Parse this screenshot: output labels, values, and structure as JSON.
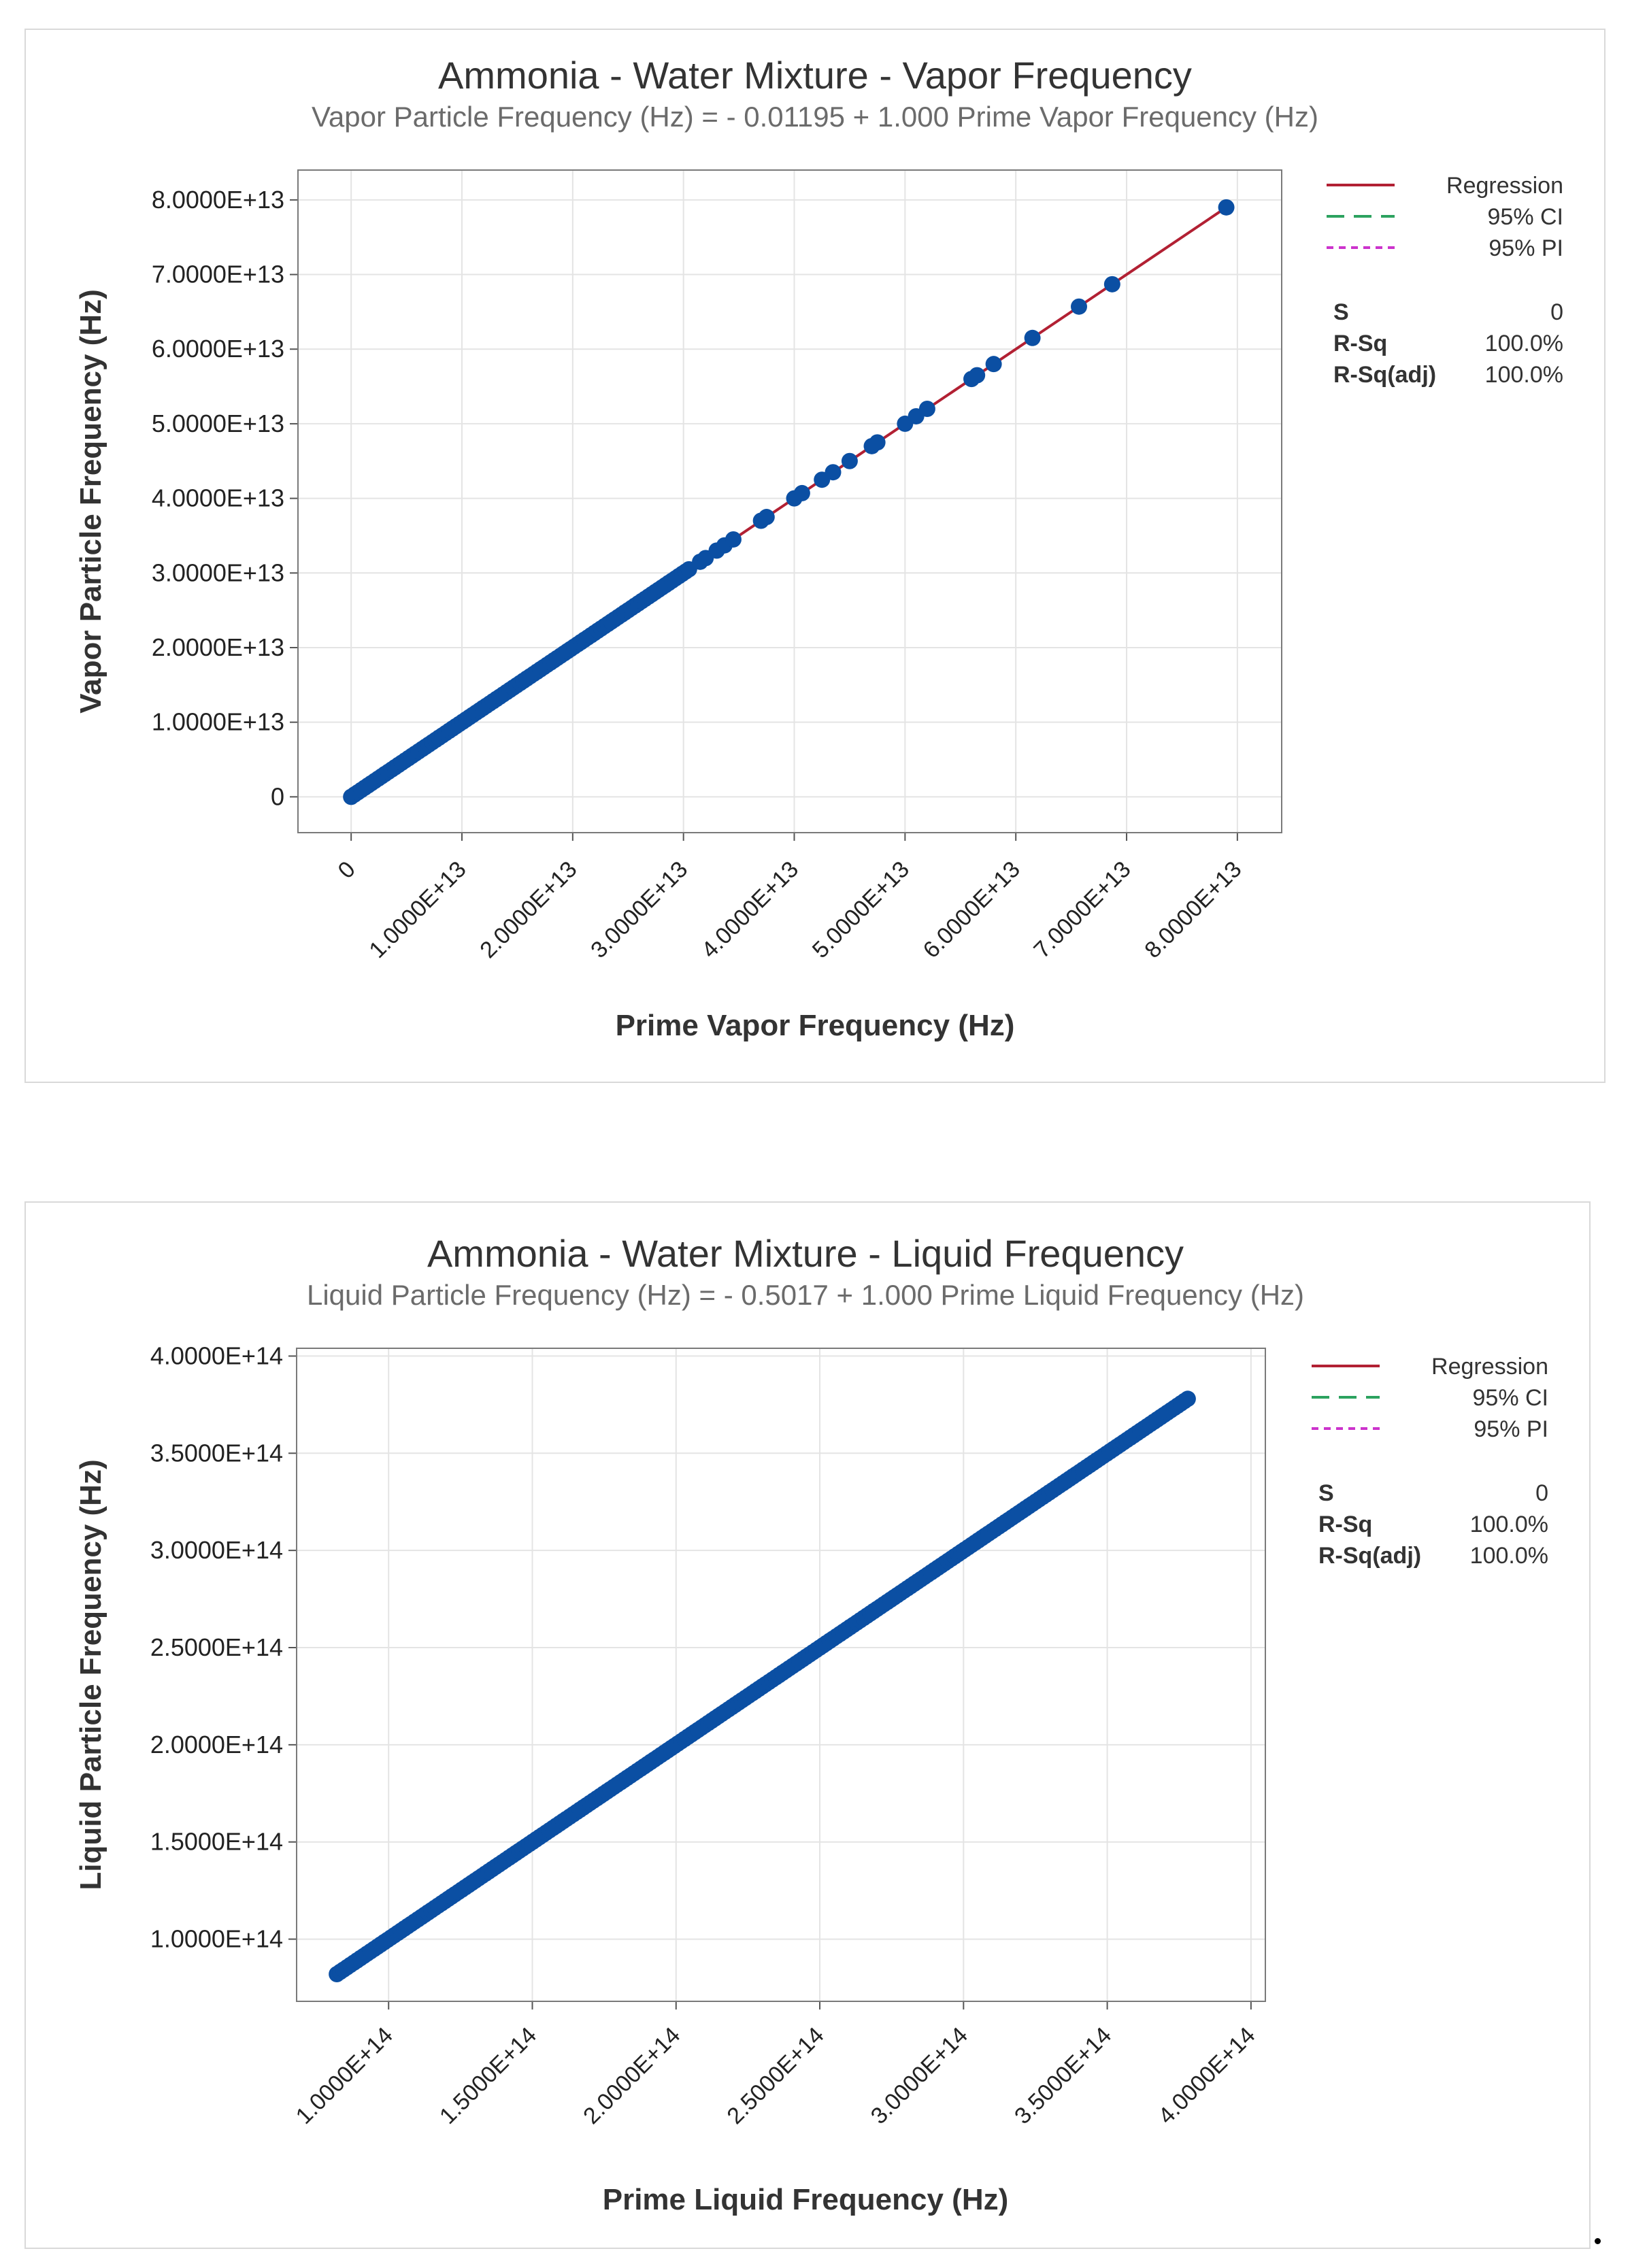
{
  "chart_data": [
    {
      "type": "scatter",
      "title": "Ammonia - Water Mixture - Vapor Frequency",
      "subtitle": "Vapor Particle Frequency (Hz) = - 0.01195 + 1.000 Prime Vapor Frequency (Hz)",
      "xlabel": "Prime Vapor Frequency (Hz)",
      "ylabel": "Vapor Particle Frequency (Hz)",
      "xlim": [
        -4800000000000.0,
        84000000000000.0
      ],
      "ylim": [
        -4800000000000.0,
        84000000000000.0
      ],
      "xticks": [
        0,
        10000000000000.0,
        20000000000000.0,
        30000000000000.0,
        40000000000000.0,
        50000000000000.0,
        60000000000000.0,
        70000000000000.0,
        80000000000000.0
      ],
      "xtick_labels": [
        "0",
        "1.0000E+13",
        "2.0000E+13",
        "3.0000E+13",
        "4.0000E+13",
        "5.0000E+13",
        "6.0000E+13",
        "7.0000E+13",
        "8.0000E+13"
      ],
      "yticks": [
        0,
        10000000000000.0,
        20000000000000.0,
        30000000000000.0,
        40000000000000.0,
        50000000000000.0,
        60000000000000.0,
        70000000000000.0,
        80000000000000.0
      ],
      "ytick_labels": [
        "0",
        "1.0000E+13",
        "2.0000E+13",
        "3.0000E+13",
        "4.0000E+13",
        "5.0000E+13",
        "6.0000E+13",
        "7.0000E+13",
        "8.0000E+13"
      ],
      "grid": true,
      "legend_position": "right",
      "legend": [
        {
          "label": "Regression",
          "color": "#b22033",
          "style": "solid"
        },
        {
          "label": "95% CI",
          "color": "#2ca25f",
          "style": "dashed"
        },
        {
          "label": "95% PI",
          "color": "#cc33cc",
          "style": "dotted"
        }
      ],
      "stats": [
        {
          "label": "S",
          "value": "0"
        },
        {
          "label": "R-Sq",
          "value": "100.0%"
        },
        {
          "label": "R-Sq(adj)",
          "value": "100.0%"
        }
      ],
      "regression": {
        "intercept": -0.01195,
        "slope": 1.0,
        "x_range": [
          0,
          79000000000000.0
        ],
        "color": "#b22033"
      },
      "point_color": "#0b4fa3",
      "dense_range": [
        0,
        30500000000000.0
      ],
      "points": [
        [
          31500000000000.0,
          31500000000000.0
        ],
        [
          32000000000000.0,
          32000000000000.0
        ],
        [
          33000000000000.0,
          33000000000000.0
        ],
        [
          33700000000000.0,
          33700000000000.0
        ],
        [
          34500000000000.0,
          34500000000000.0
        ],
        [
          37000000000000.0,
          37000000000000.0
        ],
        [
          37500000000000.0,
          37500000000000.0
        ],
        [
          40000000000000.0,
          40000000000000.0
        ],
        [
          40700000000000.0,
          40700000000000.0
        ],
        [
          42500000000000.0,
          42500000000000.0
        ],
        [
          43500000000000.0,
          43500000000000.0
        ],
        [
          45000000000000.0,
          45000000000000.0
        ],
        [
          47000000000000.0,
          47000000000000.0
        ],
        [
          47500000000000.0,
          47500000000000.0
        ],
        [
          50000000000000.0,
          50000000000000.0
        ],
        [
          51000000000000.0,
          51000000000000.0
        ],
        [
          52000000000000.0,
          52000000000000.0
        ],
        [
          56000000000000.0,
          56000000000000.0
        ],
        [
          56500000000000.0,
          56500000000000.0
        ],
        [
          58000000000000.0,
          58000000000000.0
        ],
        [
          61500000000000.0,
          61500000000000.0
        ],
        [
          65700000000000.0,
          65700000000000.0
        ],
        [
          68700000000000.0,
          68700000000000.0
        ],
        [
          79000000000000.0,
          79000000000000.0
        ]
      ]
    },
    {
      "type": "scatter",
      "title": "Ammonia - Water Mixture - Liquid Frequency",
      "subtitle": "Liquid Particle Frequency (Hz) = - 0.5017 + 1.000 Prime Liquid Frequency (Hz)",
      "xlabel": "Prime Liquid Frequency (Hz)",
      "ylabel": "Liquid Particle Frequency (Hz)",
      "xlim": [
        68000000000000.0,
        405000000000000.0
      ],
      "ylim": [
        68000000000000.0,
        404000000000000.0
      ],
      "xticks": [
        100000000000000.0,
        150000000000000.0,
        200000000000000.0,
        250000000000000.0,
        300000000000000.0,
        350000000000000.0,
        400000000000000.0
      ],
      "xtick_labels": [
        "1.0000E+14",
        "1.5000E+14",
        "2.0000E+14",
        "2.5000E+14",
        "3.0000E+14",
        "3.5000E+14",
        "4.0000E+14"
      ],
      "yticks": [
        100000000000000.0,
        150000000000000.0,
        200000000000000.0,
        250000000000000.0,
        300000000000000.0,
        350000000000000.0,
        400000000000000.0
      ],
      "ytick_labels": [
        "1.0000E+14",
        "1.5000E+14",
        "2.0000E+14",
        "2.5000E+14",
        "3.0000E+14",
        "3.5000E+14",
        "4.0000E+14"
      ],
      "grid": true,
      "legend_position": "right",
      "legend": [
        {
          "label": "Regression",
          "color": "#b22033",
          "style": "solid"
        },
        {
          "label": "95% CI",
          "color": "#2ca25f",
          "style": "dashed"
        },
        {
          "label": "95% PI",
          "color": "#cc33cc",
          "style": "dotted"
        }
      ],
      "stats": [
        {
          "label": "S",
          "value": "0"
        },
        {
          "label": "R-Sq",
          "value": "100.0%"
        },
        {
          "label": "R-Sq(adj)",
          "value": "100.0%"
        }
      ],
      "regression": {
        "intercept": -0.5017,
        "slope": 1.0,
        "x_range": [
          82000000000000.0,
          378000000000000.0
        ],
        "color": "#b22033"
      },
      "point_color": "#0b4fa3",
      "dense_range": [
        82000000000000.0,
        378000000000000.0
      ],
      "points": []
    }
  ]
}
